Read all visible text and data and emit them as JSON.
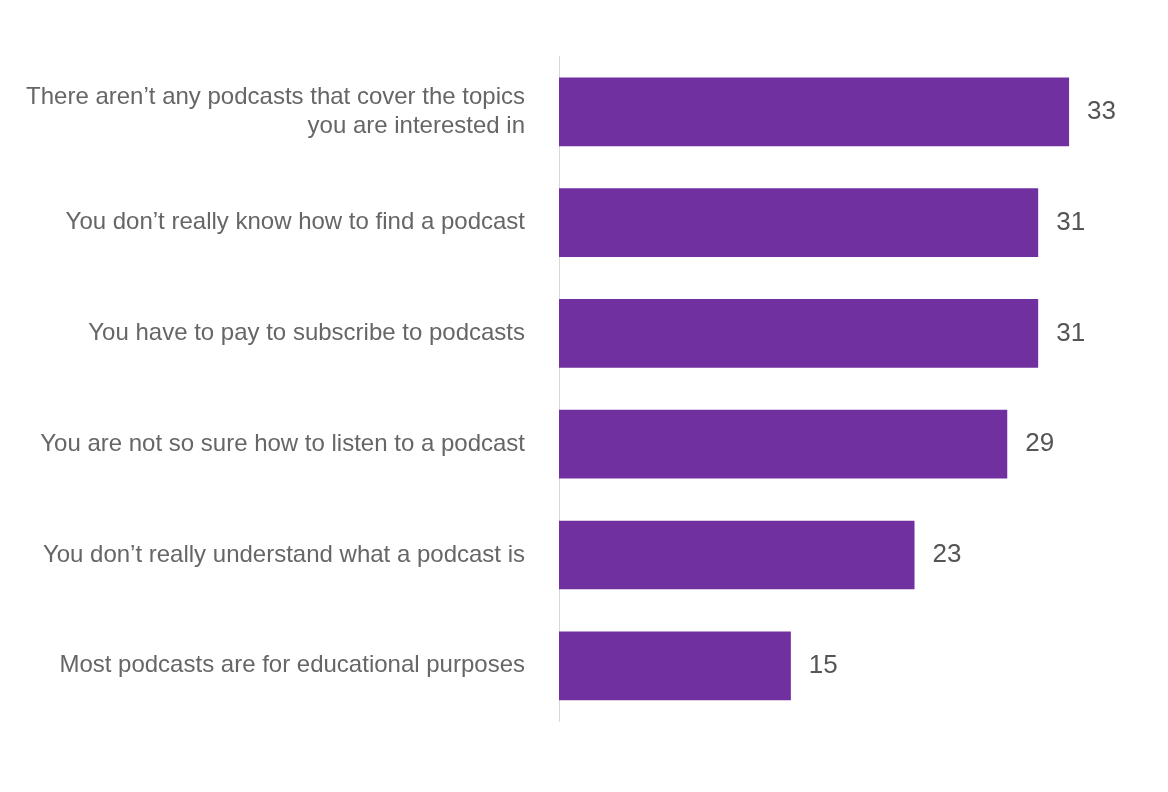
{
  "chart_data": {
    "type": "bar",
    "orientation": "horizontal",
    "categories": [
      "There aren’t any podcasts that cover the topics you are interested in",
      "You don’t really know how to find a podcast",
      "You have to pay to subscribe to podcasts",
      "You are not so sure how to listen to a podcast",
      "You don’t really understand what a podcast is",
      "Most podcasts are for educational purposes"
    ],
    "values": [
      33,
      31,
      31,
      29,
      23,
      15
    ],
    "color": "#7030a0",
    "data_labels": true,
    "legend": false,
    "tick_labels": "y"
  }
}
